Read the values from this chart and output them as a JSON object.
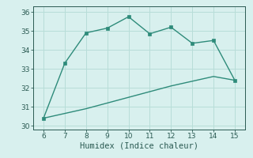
{
  "xlabel": "Humidex (Indice chaleur)",
  "line1_x": [
    6,
    7,
    8,
    9,
    10,
    11,
    12,
    13,
    14,
    15
  ],
  "line1_y": [
    30.4,
    33.3,
    34.9,
    35.15,
    35.75,
    34.85,
    35.2,
    34.35,
    34.5,
    32.4
  ],
  "line2_x": [
    6,
    7,
    8,
    9,
    10,
    11,
    12,
    13,
    14,
    15
  ],
  "line2_y": [
    30.4,
    30.65,
    30.9,
    31.2,
    31.5,
    31.8,
    32.1,
    32.35,
    32.6,
    32.4
  ],
  "line_color": "#2e8b7a",
  "bg_color": "#d8f0ee",
  "grid_color": "#b8ddd8",
  "xlim": [
    5.5,
    15.5
  ],
  "ylim": [
    29.8,
    36.3
  ],
  "xticks": [
    6,
    7,
    8,
    9,
    10,
    11,
    12,
    13,
    14,
    15
  ],
  "yticks": [
    30,
    31,
    32,
    33,
    34,
    35,
    36
  ],
  "tick_fontsize": 6.5,
  "xlabel_fontsize": 7.5,
  "marker_size": 2.5,
  "line_width": 1.0
}
